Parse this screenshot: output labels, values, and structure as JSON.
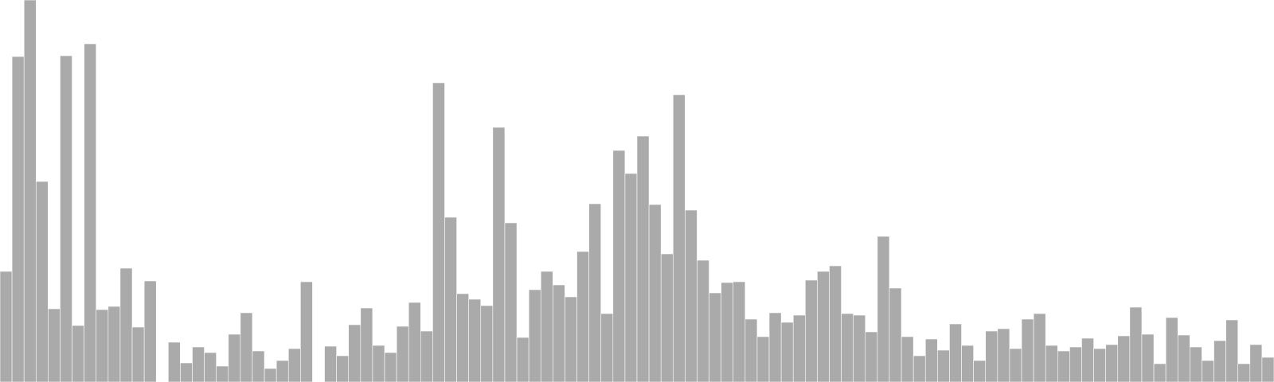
{
  "chart_data": {
    "type": "bar",
    "title": "",
    "xlabel": "",
    "ylabel": "",
    "grid": false,
    "legend": "none",
    "ylim": [
      0,
      480
    ],
    "bar_color": "#aaaaaa",
    "bar_edge_color": "#ffffff",
    "values": [
      139,
      409,
      480,
      252,
      92,
      410,
      71,
      425,
      91,
      95,
      143,
      69,
      127,
      0,
      50,
      24,
      44,
      37,
      20,
      60,
      87,
      39,
      17,
      27,
      42,
      126,
      0,
      45,
      33,
      72,
      93,
      46,
      37,
      70,
      100,
      64,
      376,
      207,
      111,
      104,
      96,
      320,
      200,
      56,
      116,
      139,
      122,
      107,
      164,
      224,
      86,
      291,
      262,
      309,
      223,
      161,
      361,
      216,
      153,
      112,
      125,
      126,
      79,
      57,
      87,
      75,
      84,
      128,
      139,
      146,
      86,
      84,
      63,
      183,
      118,
      57,
      33,
      54,
      40,
      73,
      46,
      27,
      64,
      67,
      42,
      79,
      86,
      46,
      39,
      44,
      55,
      42,
      47,
      58,
      94,
      60,
      23,
      81,
      59,
      44,
      27,
      52,
      78,
      23,
      47,
      31
    ]
  }
}
